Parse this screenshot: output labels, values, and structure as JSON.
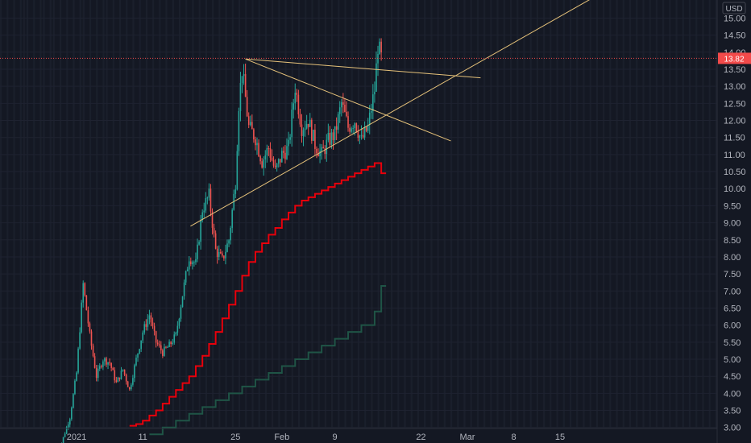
{
  "chart_data": {
    "type": "candlestick",
    "currency": "USD",
    "last_price": "13.82",
    "y_ticks": [
      "15.00",
      "14.50",
      "14.00",
      "13.50",
      "13.00",
      "12.50",
      "12.00",
      "11.50",
      "11.00",
      "10.50",
      "10.00",
      "9.50",
      "9.00",
      "8.50",
      "8.00",
      "7.50",
      "7.00",
      "6.50",
      "6.00",
      "5.50",
      "5.00",
      "4.50",
      "4.00",
      "3.50",
      "3.00"
    ],
    "ylim": [
      2.97,
      15.53
    ],
    "x_ticks": [
      "2021",
      "11",
      "25",
      "Feb",
      "9",
      "22",
      "Mar",
      "8",
      "15"
    ],
    "x_tick_days": [
      1,
      11,
      25,
      32,
      40,
      53,
      60,
      67,
      74
    ],
    "price_path": [
      [
        -2,
        2.1
      ],
      [
        0,
        3.3
      ],
      [
        1,
        4.6
      ],
      [
        2,
        7.2
      ],
      [
        3,
        5.7
      ],
      [
        4,
        4.5
      ],
      [
        5,
        5.0
      ],
      [
        6,
        4.9
      ],
      [
        7,
        4.3
      ],
      [
        8,
        4.7
      ],
      [
        9,
        4.1
      ],
      [
        10,
        5.0
      ],
      [
        11,
        5.8
      ],
      [
        12,
        6.3
      ],
      [
        13,
        5.5
      ],
      [
        14,
        5.2
      ],
      [
        15,
        5.4
      ],
      [
        16,
        5.7
      ],
      [
        17,
        6.9
      ],
      [
        18,
        8.0
      ],
      [
        19,
        7.8
      ],
      [
        20,
        9.4
      ],
      [
        21,
        9.8
      ],
      [
        22,
        8.2
      ],
      [
        23,
        7.9
      ],
      [
        24,
        8.5
      ],
      [
        25,
        10.2
      ],
      [
        25.5,
        12.5
      ],
      [
        26,
        13.5
      ],
      [
        27,
        11.8
      ],
      [
        28,
        11.5
      ],
      [
        29,
        10.8
      ],
      [
        30,
        11.2
      ],
      [
        31,
        10.5
      ],
      [
        32,
        11.0
      ],
      [
        33,
        11.2
      ],
      [
        34,
        13.0
      ],
      [
        35,
        11.8
      ],
      [
        36,
        12.0
      ],
      [
        37,
        11.3
      ],
      [
        38,
        11.0
      ],
      [
        39,
        11.4
      ],
      [
        40,
        11.6
      ],
      [
        41,
        12.5
      ],
      [
        42,
        11.8
      ],
      [
        43,
        12.0
      ],
      [
        44,
        11.4
      ],
      [
        45,
        11.8
      ],
      [
        46,
        12.9
      ],
      [
        46.5,
        14.2
      ],
      [
        47,
        13.82
      ]
    ],
    "overlays": [
      {
        "name": "Ascending trendline",
        "color": "#e6c27a",
        "points": [
          [
            18.2,
            8.9
          ],
          [
            79,
            15.6
          ]
        ]
      },
      {
        "name": "Descending trendline",
        "color": "#e6c27a",
        "points": [
          [
            26.5,
            13.8
          ],
          [
            57.5,
            11.4
          ]
        ]
      },
      {
        "name": "Descending trendline",
        "color": "#e6c27a",
        "points": [
          [
            26.5,
            13.8
          ],
          [
            62,
            13.25
          ]
        ]
      }
    ],
    "red_step_series": [
      [
        9,
        3.05
      ],
      [
        10,
        3.1
      ],
      [
        11,
        3.2
      ],
      [
        12,
        3.35
      ],
      [
        13,
        3.5
      ],
      [
        14,
        3.7
      ],
      [
        15,
        3.9
      ],
      [
        16,
        4.1
      ],
      [
        17,
        4.3
      ],
      [
        18,
        4.5
      ],
      [
        19,
        4.8
      ],
      [
        20,
        5.1
      ],
      [
        21,
        5.45
      ],
      [
        22,
        5.8
      ],
      [
        23,
        6.2
      ],
      [
        24,
        6.6
      ],
      [
        25,
        7.0
      ],
      [
        26,
        7.45
      ],
      [
        27,
        7.85
      ],
      [
        28,
        8.15
      ],
      [
        29,
        8.4
      ],
      [
        30,
        8.65
      ],
      [
        31,
        8.85
      ],
      [
        32,
        9.1
      ],
      [
        33,
        9.3
      ],
      [
        34,
        9.5
      ],
      [
        35,
        9.65
      ],
      [
        36,
        9.75
      ],
      [
        37,
        9.85
      ],
      [
        38,
        9.95
      ],
      [
        39,
        10.05
      ],
      [
        40,
        10.15
      ],
      [
        41,
        10.25
      ],
      [
        42,
        10.35
      ],
      [
        43,
        10.45
      ],
      [
        44,
        10.55
      ],
      [
        45,
        10.65
      ],
      [
        46,
        10.75
      ],
      [
        47,
        10.45
      ]
    ],
    "green_step_series": [
      [
        12,
        2.8
      ],
      [
        14,
        3.0
      ],
      [
        16,
        3.2
      ],
      [
        18,
        3.4
      ],
      [
        20,
        3.6
      ],
      [
        22,
        3.8
      ],
      [
        24,
        4.0
      ],
      [
        26,
        4.2
      ],
      [
        28,
        4.4
      ],
      [
        30,
        4.6
      ],
      [
        32,
        4.8
      ],
      [
        34,
        5.0
      ],
      [
        36,
        5.2
      ],
      [
        38,
        5.4
      ],
      [
        40,
        5.6
      ],
      [
        42,
        5.8
      ],
      [
        44,
        6.0
      ],
      [
        46,
        6.4
      ],
      [
        47,
        7.15
      ]
    ],
    "colors": {
      "background": "#141823",
      "up": "#26a69a",
      "down": "#ef5350",
      "trendline": "#e6c27a",
      "last_price_badge": "#f24a4a",
      "step_red": "#e8000b",
      "step_green": "#1f5446",
      "text": "#b2b5be"
    }
  }
}
